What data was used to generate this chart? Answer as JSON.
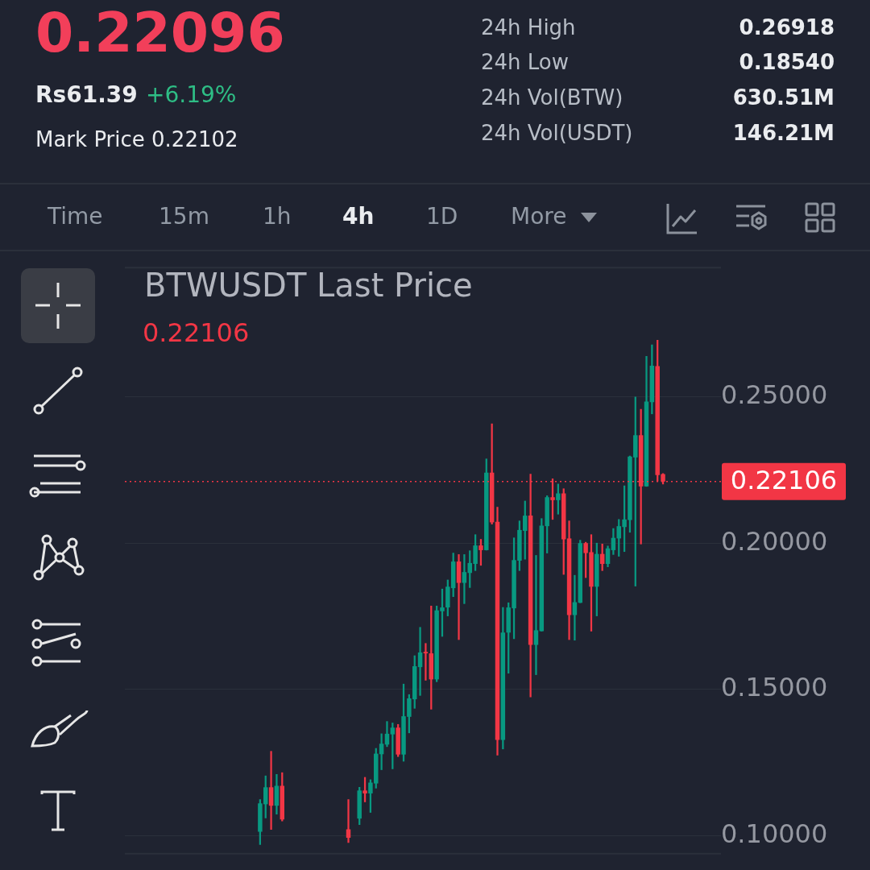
{
  "chart_data": {
    "type": "candlestick",
    "title": "BTWUSDT Last Price",
    "annotations": [
      "0.22096",
      "Rs61.39",
      "+6.19%",
      "Mark Price 0.22102",
      "24h High",
      "0.26918",
      "24h Low",
      "0.18540",
      "24h Vol(BTW)",
      "630.51M",
      "24h Vol(USDT)",
      "146.21M",
      "Time",
      "15m",
      "1h",
      "4h",
      "1D",
      "More",
      "0.22106"
    ],
    "categories": [
      null,
      null,
      null,
      null,
      null,
      null,
      null,
      null,
      null,
      null,
      null,
      null,
      null,
      null,
      null,
      null,
      null,
      null,
      null,
      null,
      null,
      null,
      null,
      null,
      null,
      null,
      null,
      null,
      null,
      null,
      null,
      null,
      null,
      null,
      null,
      null,
      null,
      null,
      null,
      null,
      null,
      null,
      null,
      null,
      null,
      null,
      null,
      null,
      null,
      null,
      null,
      null,
      null,
      null,
      null,
      null,
      null,
      null,
      null,
      null,
      null,
      null,
      null,
      null,
      null,
      null,
      null,
      null,
      null,
      null,
      null,
      null,
      null,
      null,
      null,
      null,
      null,
      null,
      null,
      null,
      null,
      null,
      null,
      null,
      null,
      null,
      null,
      null,
      null,
      null,
      null,
      null,
      null,
      null,
      null,
      null,
      null,
      null,
      null,
      null,
      null,
      null,
      null,
      null,
      null,
      null,
      null,
      null
    ],
    "ohlc": [
      null,
      null,
      null,
      null,
      null,
      null,
      null,
      null,
      null,
      null,
      null,
      null,
      null,
      null,
      null,
      null,
      null,
      null,
      null,
      null,
      null,
      null,
      null,
      null,
      [
        0.1013,
        0.1123,
        0.0969,
        0.111
      ],
      [
        0.1107,
        0.1204,
        0.106,
        0.1165
      ],
      [
        0.1165,
        0.1288,
        0.1021,
        0.1102
      ],
      [
        0.1102,
        0.1209,
        0.1073,
        0.117
      ],
      [
        0.117,
        0.1215,
        0.105,
        0.1055
      ],
      null,
      null,
      null,
      null,
      null,
      null,
      null,
      null,
      null,
      null,
      null,
      [
        0.1021,
        0.1123,
        0.0976,
        0.0992
      ],
      null,
      [
        0.1058,
        0.1165,
        0.1037,
        0.1154
      ],
      [
        0.1154,
        0.1199,
        0.1115,
        0.1144
      ],
      [
        0.1144,
        0.1191,
        0.1079,
        0.1181
      ],
      [
        0.1178,
        0.1298,
        0.1162,
        0.128
      ],
      [
        0.1278,
        0.1348,
        0.1225,
        0.1314
      ],
      [
        0.1311,
        0.139,
        0.1304,
        0.1348
      ],
      [
        0.1346,
        0.1385,
        0.1228,
        0.1369
      ],
      [
        0.1369,
        0.138,
        0.127,
        0.1277
      ],
      [
        0.1277,
        0.1518,
        0.1254,
        0.1408
      ],
      [
        0.1406,
        0.1482,
        0.1351,
        0.1469
      ],
      [
        0.1466,
        0.1615,
        0.1435,
        0.1579
      ],
      [
        0.1576,
        0.1712,
        0.1479,
        0.1626
      ],
      [
        0.1628,
        0.1657,
        0.1531,
        0.1623
      ],
      [
        0.1623,
        0.1785,
        0.1432,
        0.1534
      ],
      [
        0.1534,
        0.1785,
        0.1526,
        0.177
      ],
      [
        0.1767,
        0.1843,
        0.1681,
        0.178
      ],
      [
        0.178,
        0.1874,
        0.1751,
        0.1851
      ],
      [
        0.1846,
        0.1966,
        0.1817,
        0.1937
      ],
      [
        0.1937,
        0.1961,
        0.167,
        0.1864
      ],
      [
        0.1864,
        0.1961,
        0.1793,
        0.1901
      ],
      [
        0.1898,
        0.1974,
        0.1848,
        0.1932
      ],
      [
        0.1929,
        0.2029,
        0.1906,
        0.1992
      ],
      [
        0.1992,
        0.2013,
        0.1924,
        0.1976
      ],
      [
        0.1976,
        0.2288,
        0.1976,
        0.2241
      ],
      [
        0.2241,
        0.2408,
        0.2065,
        0.2071
      ],
      [
        0.2073,
        0.2123,
        0.1275,
        0.1327
      ],
      [
        0.1327,
        0.178,
        0.1296,
        0.1694
      ],
      [
        0.1694,
        0.1796,
        0.1555,
        0.178
      ],
      [
        0.1777,
        0.2018,
        0.1673,
        0.1942
      ],
      [
        0.194,
        0.2076,
        0.1906,
        0.2045
      ],
      [
        0.2042,
        0.2144,
        0.1945,
        0.2094
      ],
      [
        0.2094,
        0.2236,
        0.1474,
        0.1652
      ],
      [
        0.1652,
        0.1958,
        0.155,
        0.1702
      ],
      [
        0.1699,
        0.2084,
        0.1699,
        0.206
      ],
      [
        0.2058,
        0.2162,
        0.1966,
        0.2157
      ],
      [
        0.2157,
        0.222,
        0.2081,
        0.2147
      ],
      [
        0.2147,
        0.2202,
        0.2099,
        0.217
      ],
      [
        0.217,
        0.2186,
        0.1893,
        0.2013
      ],
      [
        0.2016,
        0.2076,
        0.167,
        0.1754
      ],
      [
        0.1754,
        0.189,
        0.1668,
        0.1798
      ],
      [
        0.1796,
        0.201,
        0.1796,
        0.2
      ],
      [
        0.2,
        0.2003,
        0.1882,
        0.1966
      ],
      [
        0.1969,
        0.2029,
        0.1699,
        0.1851
      ],
      [
        0.1851,
        0.2,
        0.1751,
        0.1963
      ],
      [
        0.1963,
        0.1997,
        0.1906,
        0.1929
      ],
      [
        0.1929,
        0.199,
        0.1919,
        0.1982
      ],
      [
        0.1976,
        0.205,
        0.1961,
        0.2018
      ],
      [
        0.2016,
        0.2081,
        0.1955,
        0.2058
      ],
      [
        0.2055,
        0.2196,
        0.1971,
        0.2081
      ],
      [
        0.2079,
        0.2298,
        0.2037,
        0.2296
      ],
      [
        0.2293,
        0.25,
        0.1853,
        0.2369
      ],
      [
        0.2369,
        0.2458,
        0.1997,
        0.2194
      ],
      [
        0.2194,
        0.2639,
        0.2194,
        0.2484
      ],
      [
        0.2482,
        0.2678,
        0.2442,
        0.2607
      ],
      [
        0.2605,
        0.2694,
        0.2212,
        0.2233
      ],
      [
        0.2236,
        0.2238,
        0.2202,
        0.22106
      ],
      null,
      null,
      null,
      null,
      null,
      null,
      null,
      null,
      null,
      null
    ],
    "colors": [
      null,
      null,
      null,
      null,
      null,
      null,
      null,
      null,
      null,
      null,
      null,
      null,
      null,
      null,
      null,
      null,
      null,
      null,
      null,
      null,
      null,
      null,
      null,
      null,
      "#089981",
      "#089981",
      "#f23645",
      "#089981",
      "#f23645",
      null,
      null,
      null,
      null,
      null,
      null,
      null,
      null,
      null,
      null,
      null,
      "#f23645",
      null,
      "#089981",
      "#f23645",
      "#089981",
      "#089981",
      "#089981",
      "#089981",
      "#089981",
      "#f23645",
      "#089981",
      "#089981",
      "#089981",
      "#089981",
      "#f23645",
      "#f23645",
      "#089981",
      "#089981",
      "#089981",
      "#089981",
      "#f23645",
      "#089981",
      "#089981",
      "#089981",
      "#f23645",
      "#089981",
      "#f23645",
      "#f23645",
      "#089981",
      "#089981",
      "#089981",
      "#089981",
      "#089981",
      "#f23645",
      "#089981",
      "#089981",
      "#089981",
      "#f23645",
      "#089981",
      "#f23645",
      "#f23645",
      "#089981",
      "#089981",
      "#f23645",
      "#f23645",
      "#089981",
      "#f23645",
      "#089981",
      "#089981",
      "#089981",
      "#089981",
      "#089981",
      "#089981",
      "#f23645",
      "#089981",
      "#089981",
      "#f23645",
      "#f23645",
      null,
      null,
      null,
      null,
      null,
      null,
      null,
      null,
      null,
      null
    ],
    "ylim": [
      0.0935,
      0.2945
    ],
    "yticks": [
      {
        "value": 0.1,
        "label": "0.10000"
      },
      {
        "value": 0.15,
        "label": "0.15000"
      },
      {
        "value": 0.2,
        "label": "0.20000"
      },
      {
        "value": 0.25,
        "label": "0.25000"
      }
    ],
    "tick_labels": "y",
    "grid": "y",
    "ref_lines": [
      {
        "axis": "y",
        "value": 0.22106,
        "label": "0.22106",
        "color": "#f23645",
        "line_style": "dotted"
      }
    ]
  }
}
